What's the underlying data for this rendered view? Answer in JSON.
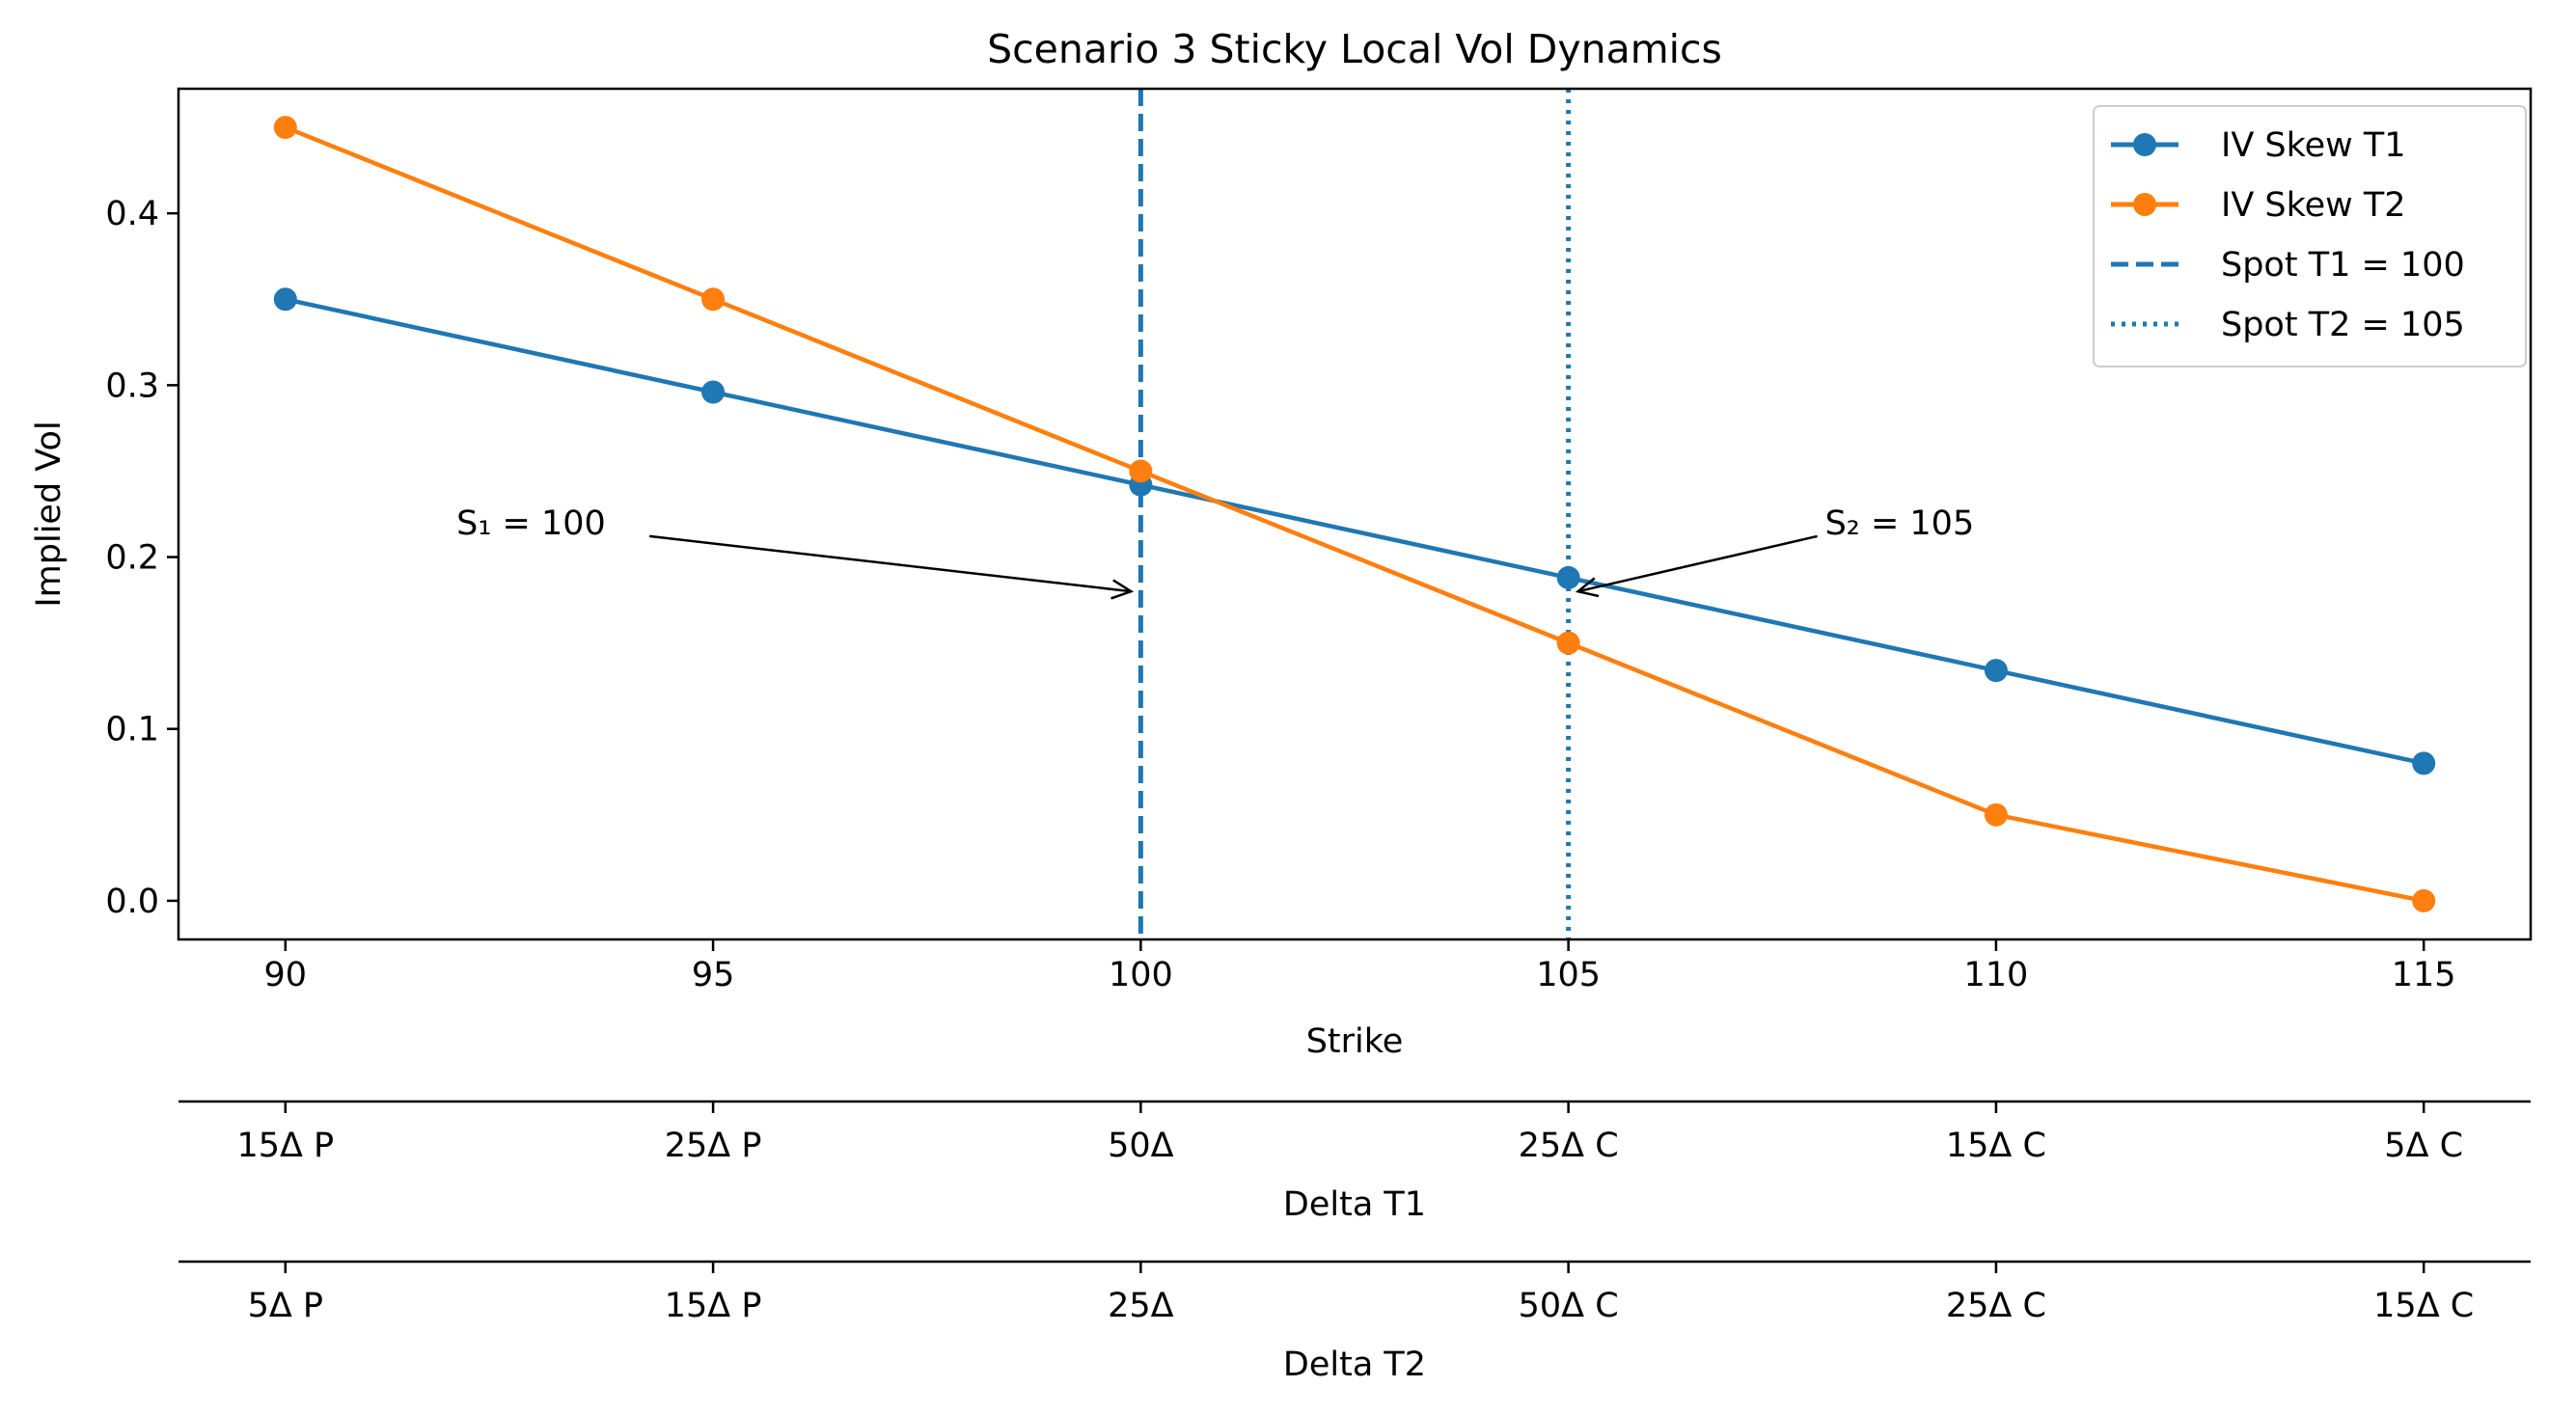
{
  "chart_data": {
    "type": "line",
    "title": "Scenario 3 Sticky Local Vol Dynamics",
    "xlabel": "Strike",
    "ylabel": "Implied Vol",
    "x": [
      90,
      95,
      100,
      105,
      110,
      115
    ],
    "x_tick_labels": [
      "90",
      "95",
      "100",
      "105",
      "110",
      "115"
    ],
    "xlim": [
      88.75,
      116.25
    ],
    "ylim": [
      -0.0225,
      0.4725
    ],
    "y_ticks": [
      0.0,
      0.1,
      0.2,
      0.3,
      0.4
    ],
    "y_tick_labels": [
      "0.0",
      "0.1",
      "0.2",
      "0.3",
      "0.4"
    ],
    "grid": false,
    "legend_position": "top-right",
    "series": [
      {
        "name": "IV Skew T1",
        "color": "#1f77b4",
        "marker": "circle",
        "values": [
          0.35,
          0.296,
          0.242,
          0.188,
          0.134,
          0.08
        ]
      },
      {
        "name": "IV Skew T2",
        "color": "#ff7f0e",
        "marker": "circle",
        "values": [
          0.45,
          0.35,
          0.25,
          0.15,
          0.05,
          0.0
        ]
      }
    ],
    "vlines": [
      {
        "name": "Spot T1 = 100",
        "x": 100,
        "style": "dashed",
        "color": "#1f77b4"
      },
      {
        "name": "Spot T2 = 105",
        "x": 105,
        "style": "dotted",
        "color": "#1f77b4"
      }
    ],
    "annotations": [
      {
        "text": "S₁ = 100",
        "x": 100,
        "y": 0.18,
        "text_x": 92,
        "text_y": 0.22
      },
      {
        "text": "S₂ = 105",
        "x": 105,
        "y": 0.18,
        "text_x": 108,
        "text_y": 0.22
      }
    ],
    "secondary_axes": [
      {
        "label": "Delta T1",
        "tick_labels": [
          "15Δ P",
          "25Δ P",
          "50Δ",
          "25Δ C",
          "15Δ C",
          "5Δ C"
        ]
      },
      {
        "label": "Delta T2",
        "tick_labels": [
          "5Δ P",
          "15Δ P",
          "25Δ",
          "50Δ C",
          "25Δ C",
          "15Δ C"
        ]
      }
    ]
  }
}
